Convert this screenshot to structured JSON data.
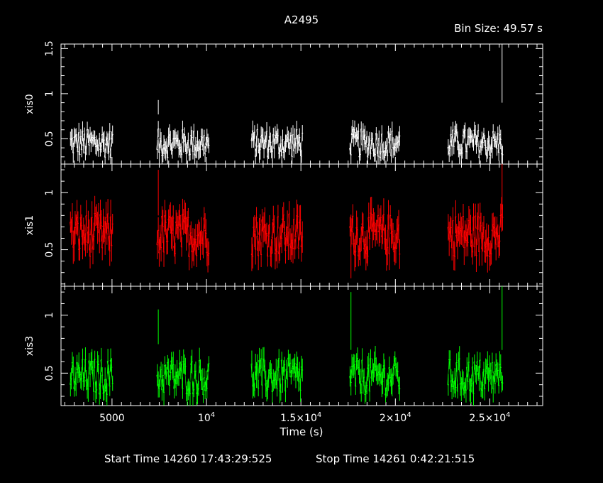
{
  "chart_data": {
    "type": "line",
    "title": "A2495",
    "bin_size_label": "Bin Size: 49.57 s",
    "xlabel": "Time (s)",
    "xlim": [
      2300,
      27800
    ],
    "x_ticks": [
      {
        "value": 5000,
        "label": "5000",
        "exp": ""
      },
      {
        "value": 10000,
        "label": "10",
        "exp": "4"
      },
      {
        "value": 15000,
        "label": "1.5×10",
        "exp": "4"
      },
      {
        "value": 20000,
        "label": "2×10",
        "exp": "4"
      },
      {
        "value": 25000,
        "label": "2.5×10",
        "exp": "4"
      }
    ],
    "panels": [
      {
        "name": "xis0",
        "color": "#ffffff",
        "ylim": [
          0.22,
          1.55
        ],
        "y_ticks": [
          {
            "value": 0.5,
            "label": "0.5"
          },
          {
            "value": 1,
            "label": "1"
          },
          {
            "value": 1.5,
            "label": "1.5"
          }
        ],
        "mean": 0.45,
        "noise": 0.1,
        "err": 0.09,
        "segments": [
          [
            2800,
            5050
          ],
          [
            7400,
            10150
          ],
          [
            12400,
            15100
          ],
          [
            17600,
            20250
          ],
          [
            22800,
            25700
          ]
        ],
        "spikes": [
          {
            "x": 25650,
            "y": 1.25,
            "err": 0.35
          },
          {
            "x": 7450,
            "y": 0.85,
            "err": 0.08
          }
        ]
      },
      {
        "name": "xis1",
        "color": "#ff0000",
        "ylim": [
          0.18,
          1.25
        ],
        "y_ticks": [
          {
            "value": 0.5,
            "label": "0.5"
          },
          {
            "value": 1,
            "label": "1"
          }
        ],
        "mean": 0.63,
        "noise": 0.12,
        "err": 0.12,
        "segments": [
          [
            2800,
            5050
          ],
          [
            7400,
            10150
          ],
          [
            12400,
            15100
          ],
          [
            17600,
            20250
          ],
          [
            22800,
            25700
          ]
        ],
        "spikes": [
          {
            "x": 25650,
            "y": 1.05,
            "err": 0.2
          },
          {
            "x": 7450,
            "y": 1.0,
            "err": 0.2
          },
          {
            "x": 17650,
            "y": 0.4,
            "err": 0.15
          }
        ]
      },
      {
        "name": "xis3",
        "color": "#00ff00",
        "ylim": [
          0.22,
          1.25
        ],
        "y_ticks": [
          {
            "value": 0.5,
            "label": "0.5"
          },
          {
            "value": 1,
            "label": "1"
          }
        ],
        "mean": 0.47,
        "noise": 0.1,
        "err": 0.09,
        "segments": [
          [
            2800,
            5050
          ],
          [
            7400,
            10150
          ],
          [
            12400,
            15100
          ],
          [
            17600,
            20250
          ],
          [
            22800,
            25700
          ]
        ],
        "spikes": [
          {
            "x": 25650,
            "y": 1.0,
            "err": 0.3
          },
          {
            "x": 17650,
            "y": 0.95,
            "err": 0.25
          },
          {
            "x": 7450,
            "y": 0.9,
            "err": 0.15
          }
        ]
      }
    ]
  },
  "footer": {
    "start_time": "Start Time 14260 17:43:29:525",
    "stop_time": "Stop Time 14261  0:42:21:515"
  }
}
